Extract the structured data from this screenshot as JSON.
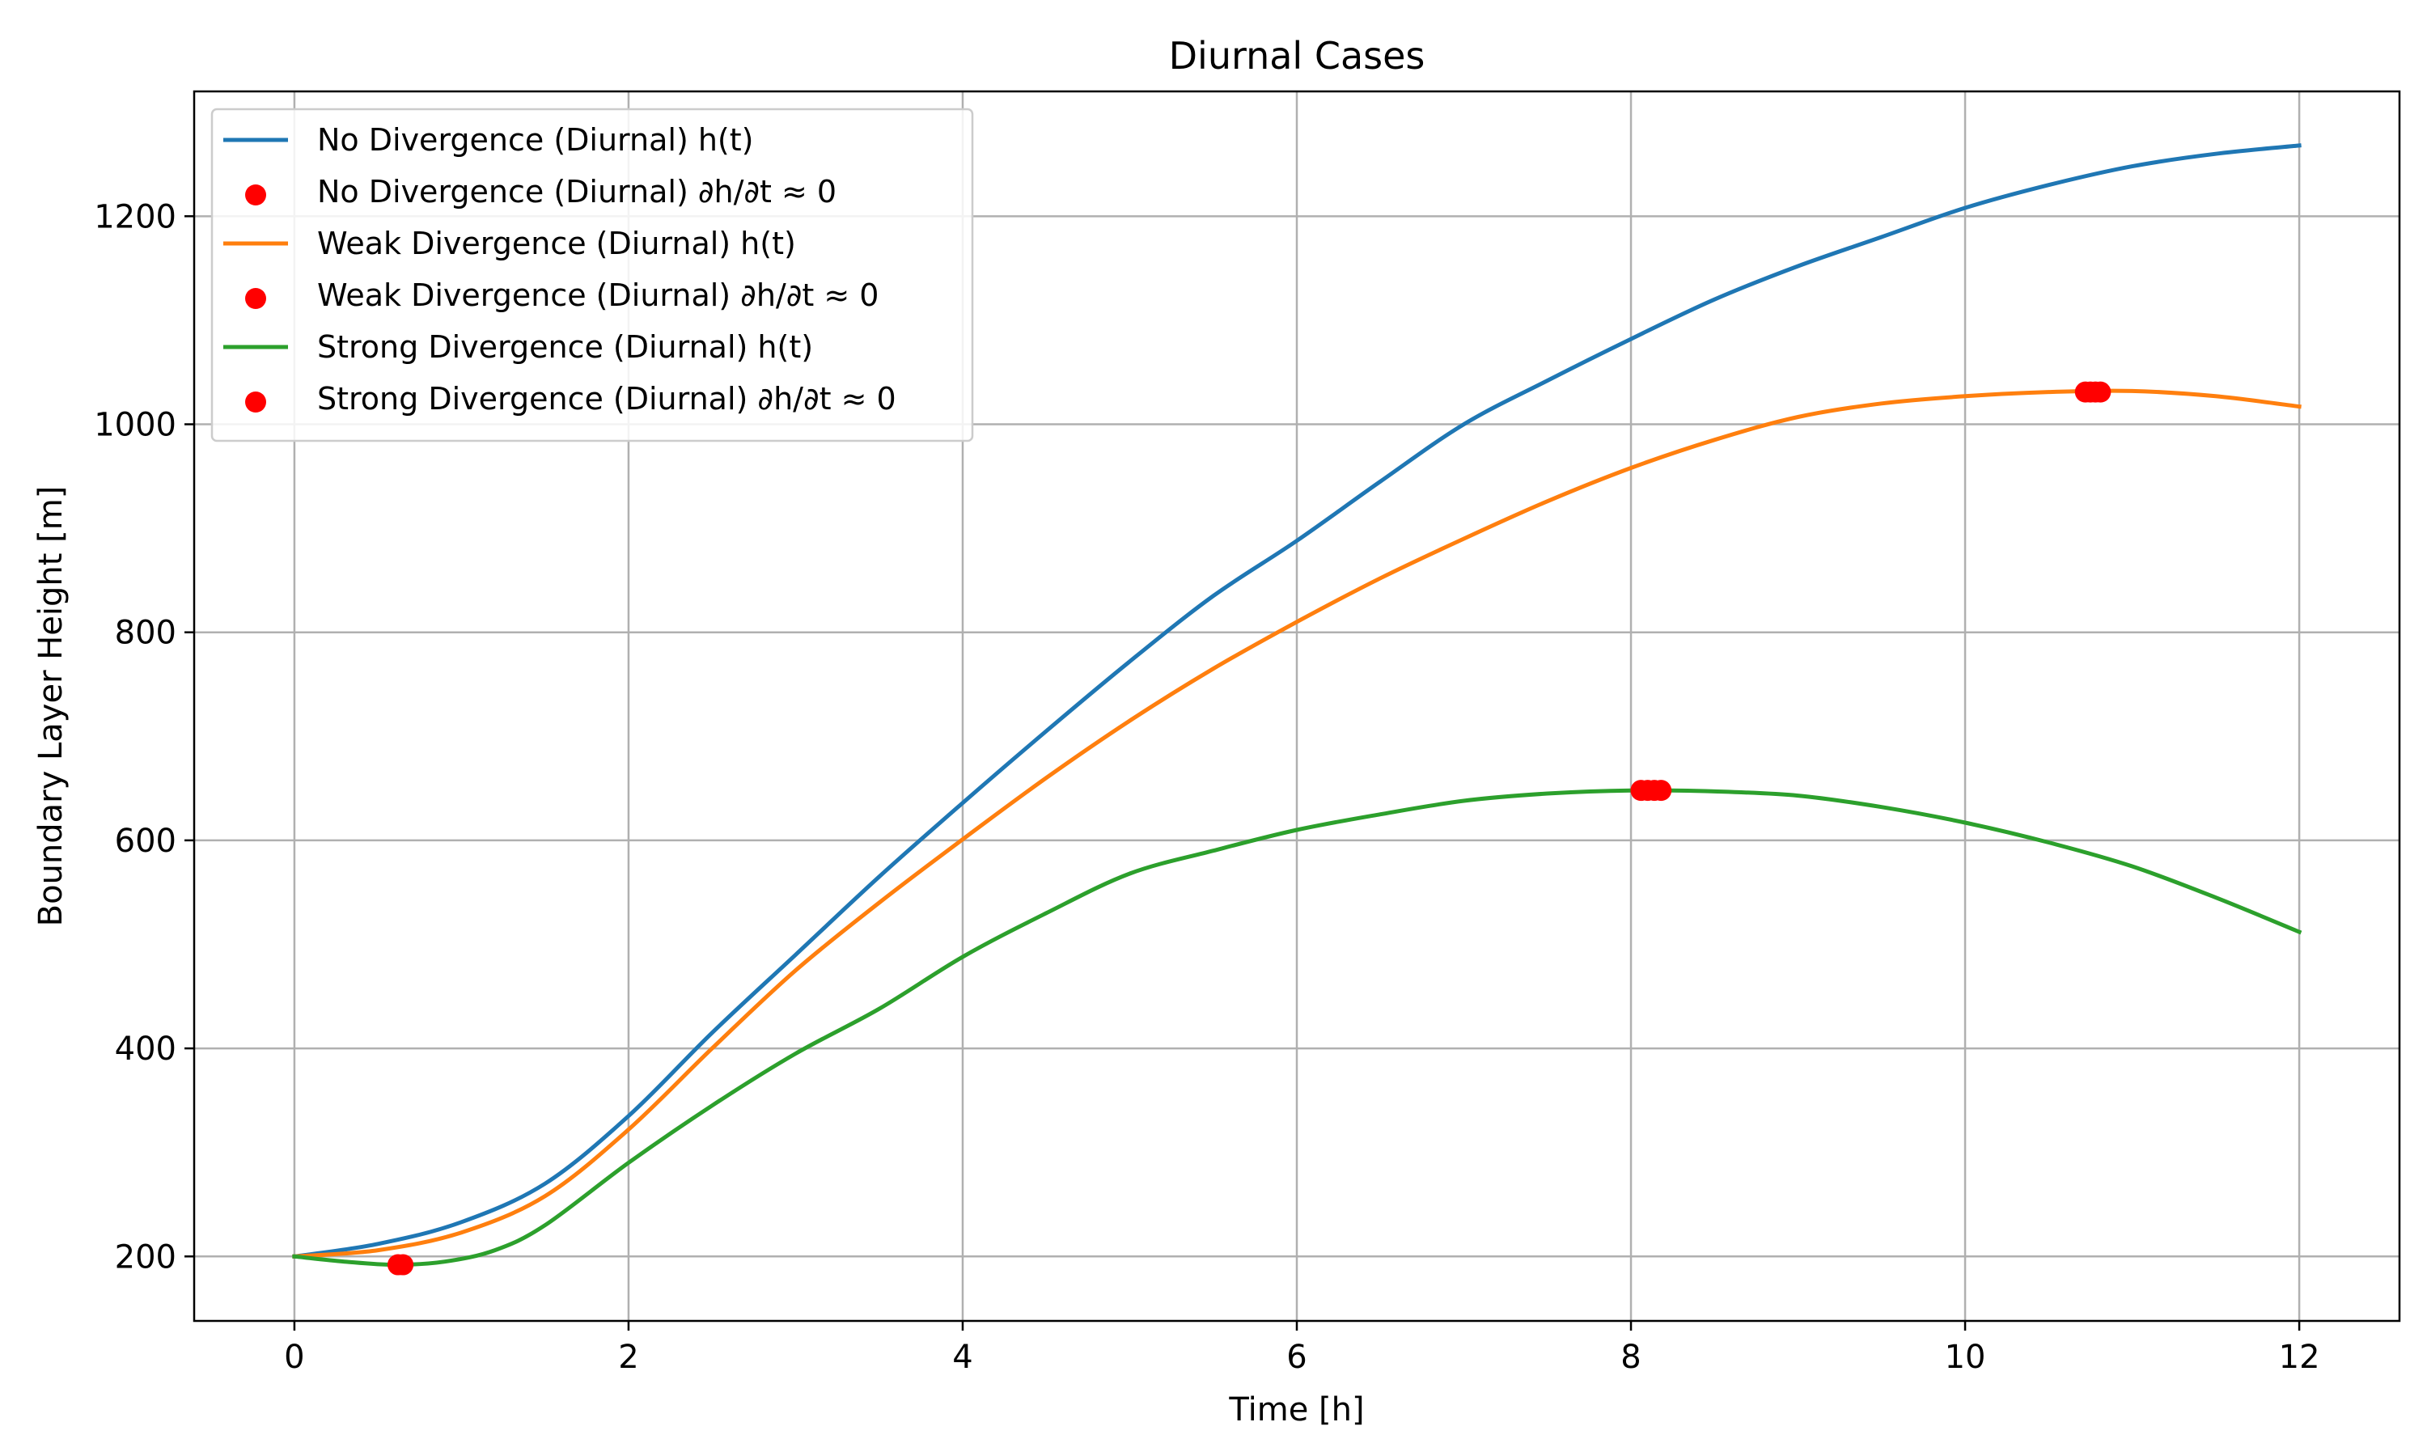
{
  "chart_data": {
    "type": "line",
    "title": "Diurnal Cases",
    "xlabel": "Time [h]",
    "ylabel": "Boundary Layer Height [m]",
    "xlim": [
      -0.6,
      12.6
    ],
    "ylim": [
      138,
      1320
    ],
    "xticks": [
      0,
      2,
      4,
      6,
      8,
      10,
      12
    ],
    "yticks": [
      200,
      400,
      600,
      800,
      1000,
      1200
    ],
    "grid": true,
    "legend_position": "top-left",
    "series": [
      {
        "name": "No Divergence (Diurnal) h(t)",
        "kind": "line",
        "color": "#1f77b4",
        "x": [
          0,
          0.5,
          1,
          1.5,
          2,
          2.5,
          3,
          3.5,
          4,
          4.5,
          5,
          5.5,
          6,
          6.5,
          7,
          7.5,
          8,
          8.5,
          9,
          9.5,
          10,
          10.5,
          11,
          11.5,
          12
        ],
        "y": [
          200,
          212,
          233,
          270,
          335,
          415,
          490,
          565,
          636,
          705,
          772,
          835,
          888,
          945,
          1000,
          1042,
          1082,
          1120,
          1152,
          1180,
          1208,
          1230,
          1248,
          1260,
          1268
        ]
      },
      {
        "name": "No Divergence (Diurnal) ∂h/∂t ≈ 0",
        "kind": "scatter",
        "color": "#ff0000",
        "x": [],
        "y": []
      },
      {
        "name": "Weak Divergence (Diurnal) h(t)",
        "kind": "line",
        "color": "#ff7f0e",
        "x": [
          0,
          0.5,
          1,
          1.5,
          2,
          2.5,
          3,
          3.5,
          4,
          4.5,
          5,
          5.5,
          6,
          6.5,
          7,
          7.5,
          8,
          8.5,
          9,
          9.5,
          10,
          10.5,
          11,
          11.5,
          12
        ],
        "y": [
          200,
          206,
          223,
          258,
          322,
          400,
          475,
          540,
          601,
          660,
          715,
          765,
          810,
          852,
          890,
          926,
          958,
          985,
          1007,
          1020,
          1027,
          1031,
          1032,
          1027,
          1017
        ]
      },
      {
        "name": "Weak Divergence (Diurnal) ∂h/∂t ≈ 0",
        "kind": "scatter",
        "color": "#ff0000",
        "x": [
          10.72,
          10.75,
          10.78,
          10.81
        ],
        "y": [
          1031,
          1031,
          1031,
          1031
        ]
      },
      {
        "name": "Strong Divergence (Diurnal) h(t)",
        "kind": "line",
        "color": "#2ca02c",
        "x": [
          0,
          0.3,
          0.6,
          0.9,
          1.2,
          1.5,
          2,
          2.5,
          3,
          3.5,
          4,
          4.5,
          5,
          5.5,
          6,
          6.5,
          7,
          7.5,
          8,
          8.5,
          9,
          9.5,
          10,
          10.5,
          11,
          11.5,
          12
        ],
        "y": [
          200,
          195,
          192,
          195,
          206,
          230,
          290,
          345,
          395,
          438,
          488,
          530,
          568,
          590,
          610,
          625,
          638,
          645,
          648,
          647,
          643,
          632,
          617,
          598,
          575,
          545,
          512
        ]
      },
      {
        "name": "Strong Divergence (Diurnal) ∂h/∂t ≈ 0",
        "kind": "scatter",
        "color": "#ff0000",
        "x": [
          0.62,
          0.65,
          8.06,
          8.1,
          8.14,
          8.18
        ],
        "y": [
          192,
          192,
          648,
          648,
          648,
          648
        ]
      }
    ]
  }
}
